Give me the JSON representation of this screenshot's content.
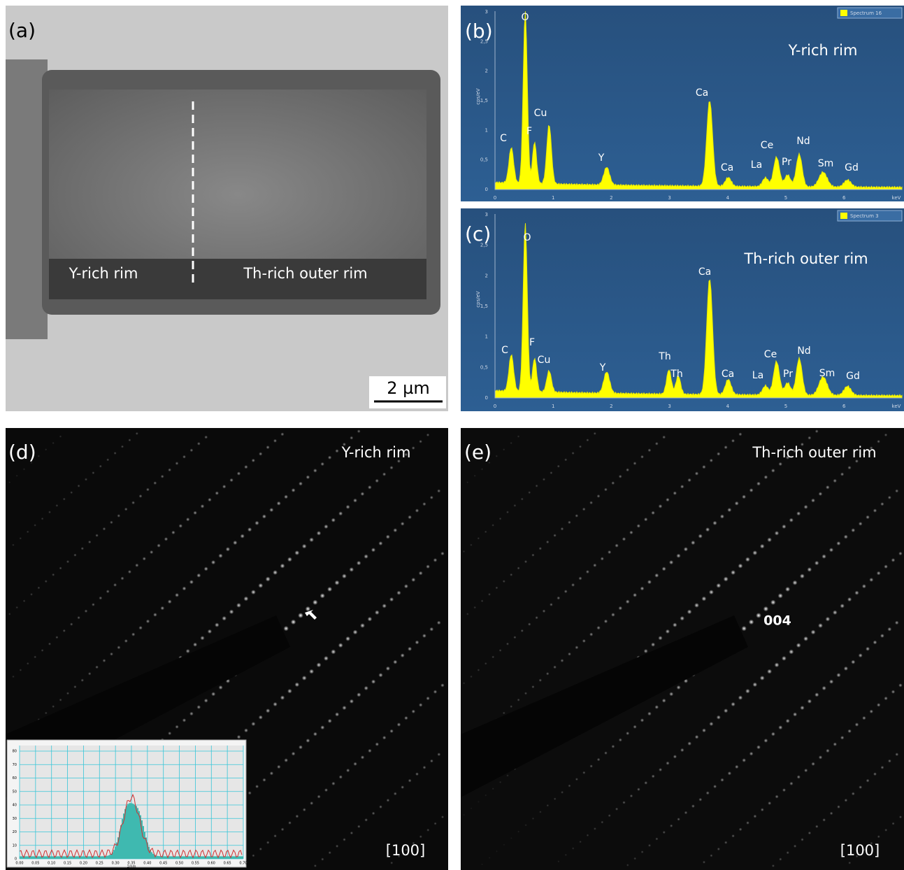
{
  "panels": {
    "a": {
      "label": "(a)",
      "regions": [
        "Y-rich rim",
        "Th-rich outer rim"
      ],
      "scale_bar": "2 µm"
    },
    "b": {
      "label": "(b)",
      "title": "Y-rich rim",
      "legend": "Spectrum 16",
      "y_axis_label": "cps/eV",
      "x_axis_label": "keV",
      "yticks": [
        "0",
        "0,5",
        "1",
        "1,5",
        "2",
        "2,5",
        "3"
      ],
      "xticks": [
        "0",
        "1",
        "2",
        "3",
        "4",
        "5",
        "6"
      ],
      "peak_labels": [
        "O",
        "C",
        "F",
        "Cu",
        "Y",
        "Ca",
        "Ca",
        "La",
        "Ce",
        "Pr",
        "Nd",
        "Sm",
        "Gd"
      ]
    },
    "c": {
      "label": "(c)",
      "title": "Th-rich outer rim",
      "legend": "Spectrum 3",
      "y_axis_label": "cps/eV",
      "x_axis_label": "keV",
      "yticks": [
        "0",
        "0,5",
        "1",
        "1,5",
        "2",
        "2,5",
        "3"
      ],
      "xticks": [
        "0",
        "1",
        "2",
        "3",
        "4",
        "5",
        "6"
      ],
      "peak_labels": [
        "O",
        "C",
        "F",
        "Cu",
        "Y",
        "Th",
        "Th",
        "Ca",
        "Ca",
        "La",
        "Ce",
        "Pr",
        "Nd",
        "Sm",
        "Gd"
      ]
    },
    "d": {
      "label": "(d)",
      "title": "Y-rich rim",
      "zone_axis": "[100]",
      "inset": {
        "yticks": [
          "0",
          "10",
          "20",
          "30",
          "40",
          "50",
          "60",
          "70",
          "80"
        ],
        "xticks": [
          "0.00",
          "0.05",
          "0.10",
          "0.15",
          "0.20",
          "0.25",
          "0.30",
          "0.35",
          "0.40",
          "0.45",
          "0.50",
          "0.55",
          "0.60",
          "0.65",
          "0.70"
        ],
        "x_axis_label": "1/nm"
      }
    },
    "e": {
      "label": "(e)",
      "title": "Th-rich outer rim",
      "spot_label": "004",
      "zone_axis": "[100]"
    }
  }
}
